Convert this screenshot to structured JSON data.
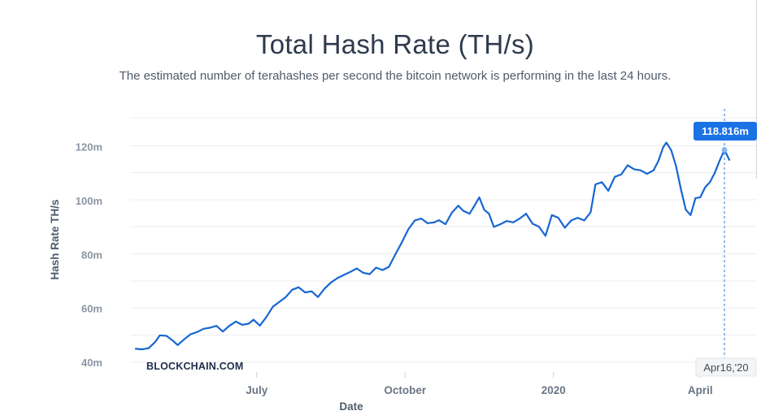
{
  "chart_data": {
    "type": "line",
    "title": "Total Hash Rate (TH/s)",
    "subtitle": "The estimated number of terahashes per second the bitcoin network is performing in the last 24 hours.",
    "xlabel": "Date",
    "ylabel": "Hash Rate TH/s",
    "ylim": [
      40,
      120
    ],
    "yticks": [
      "40m",
      "60m",
      "80m",
      "100m",
      "120m"
    ],
    "xticks": [
      "July",
      "October",
      "2020",
      "April"
    ],
    "grid": "horizontal",
    "watermark": "BLOCKCHAIN.COM",
    "tooltip": {
      "value": "118.816m",
      "date": "Apr16,'20"
    },
    "series": [
      {
        "color": "#1766d2",
        "points": [
          [
            "2019-04-17",
            45
          ],
          [
            "2019-04-21",
            44.8
          ],
          [
            "2019-04-25",
            45.2
          ],
          [
            "2019-04-29",
            47.5
          ],
          [
            "2019-05-02",
            50
          ],
          [
            "2019-05-06",
            49.8
          ],
          [
            "2019-05-10",
            48
          ],
          [
            "2019-05-13",
            46.4
          ],
          [
            "2019-05-17",
            48.5
          ],
          [
            "2019-05-21",
            50.4
          ],
          [
            "2019-05-25",
            51.2
          ],
          [
            "2019-05-29",
            52.4
          ],
          [
            "2019-06-02",
            52.8
          ],
          [
            "2019-06-06",
            53.5
          ],
          [
            "2019-06-10",
            51.4
          ],
          [
            "2019-06-14",
            53.5
          ],
          [
            "2019-06-18",
            55.1
          ],
          [
            "2019-06-22",
            53.9
          ],
          [
            "2019-06-26",
            54.3
          ],
          [
            "2019-06-29",
            55.8
          ],
          [
            "2019-07-03",
            53.6
          ],
          [
            "2019-07-07",
            56.8
          ],
          [
            "2019-07-11",
            60.6
          ],
          [
            "2019-07-15",
            62.4
          ],
          [
            "2019-07-19",
            64.2
          ],
          [
            "2019-07-23",
            66.9
          ],
          [
            "2019-07-27",
            67.8
          ],
          [
            "2019-07-31",
            65.9
          ],
          [
            "2019-08-04",
            66.3
          ],
          [
            "2019-08-08",
            64.2
          ],
          [
            "2019-08-12",
            67.3
          ],
          [
            "2019-08-16",
            69.6
          ],
          [
            "2019-08-20",
            71.2
          ],
          [
            "2019-08-24",
            72.4
          ],
          [
            "2019-08-28",
            73.5
          ],
          [
            "2019-09-01",
            74.8
          ],
          [
            "2019-09-05",
            73.2
          ],
          [
            "2019-09-09",
            72.7
          ],
          [
            "2019-09-13",
            75.1
          ],
          [
            "2019-09-17",
            74.2
          ],
          [
            "2019-09-21",
            75.4
          ],
          [
            "2019-09-25",
            80.1
          ],
          [
            "2019-09-29",
            84.5
          ],
          [
            "2019-10-03",
            89.3
          ],
          [
            "2019-10-07",
            92.6
          ],
          [
            "2019-10-11",
            93.3
          ],
          [
            "2019-10-15",
            91.6
          ],
          [
            "2019-10-19",
            91.9
          ],
          [
            "2019-10-22",
            92.7
          ],
          [
            "2019-10-26",
            91.2
          ],
          [
            "2019-10-30",
            95.5
          ],
          [
            "2019-11-03",
            98.1
          ],
          [
            "2019-11-06",
            96.2
          ],
          [
            "2019-11-10",
            95.1
          ],
          [
            "2019-11-13",
            98.1
          ],
          [
            "2019-11-16",
            101.2
          ],
          [
            "2019-11-19",
            96.6
          ],
          [
            "2019-11-22",
            95.1
          ],
          [
            "2019-11-25",
            90.2
          ],
          [
            "2019-11-29",
            91.2
          ],
          [
            "2019-12-03",
            92.4
          ],
          [
            "2019-12-07",
            91.9
          ],
          [
            "2019-12-11",
            93.3
          ],
          [
            "2019-12-15",
            95.1
          ],
          [
            "2019-12-19",
            91.4
          ],
          [
            "2019-12-23",
            90.3
          ],
          [
            "2019-12-27",
            86.9
          ],
          [
            "2019-12-31",
            94.6
          ],
          [
            "2020-01-04",
            93.6
          ],
          [
            "2020-01-08",
            89.9
          ],
          [
            "2020-01-12",
            92.6
          ],
          [
            "2020-01-16",
            93.6
          ],
          [
            "2020-01-20",
            92.6
          ],
          [
            "2020-01-24",
            95.6
          ],
          [
            "2020-01-27",
            106
          ],
          [
            "2020-01-31",
            106.8
          ],
          [
            "2020-02-04",
            103.6
          ],
          [
            "2020-02-08",
            108.8
          ],
          [
            "2020-02-12",
            109.7
          ],
          [
            "2020-02-16",
            113.1
          ],
          [
            "2020-02-20",
            111.6
          ],
          [
            "2020-02-24",
            111.2
          ],
          [
            "2020-02-28",
            109.9
          ],
          [
            "2020-03-03",
            111.2
          ],
          [
            "2020-03-06",
            114.6
          ],
          [
            "2020-03-09",
            119.8
          ],
          [
            "2020-03-11",
            121.5
          ],
          [
            "2020-03-14",
            118.6
          ],
          [
            "2020-03-17",
            112.8
          ],
          [
            "2020-03-20",
            104.2
          ],
          [
            "2020-03-23",
            96.6
          ],
          [
            "2020-03-26",
            94.6
          ],
          [
            "2020-03-29",
            100.9
          ],
          [
            "2020-04-01",
            101.2
          ],
          [
            "2020-04-04",
            104.9
          ],
          [
            "2020-04-07",
            106.8
          ],
          [
            "2020-04-10",
            110.3
          ],
          [
            "2020-04-13",
            114.8
          ],
          [
            "2020-04-16",
            118.8
          ],
          [
            "2020-04-19",
            115.1
          ]
        ]
      }
    ]
  }
}
